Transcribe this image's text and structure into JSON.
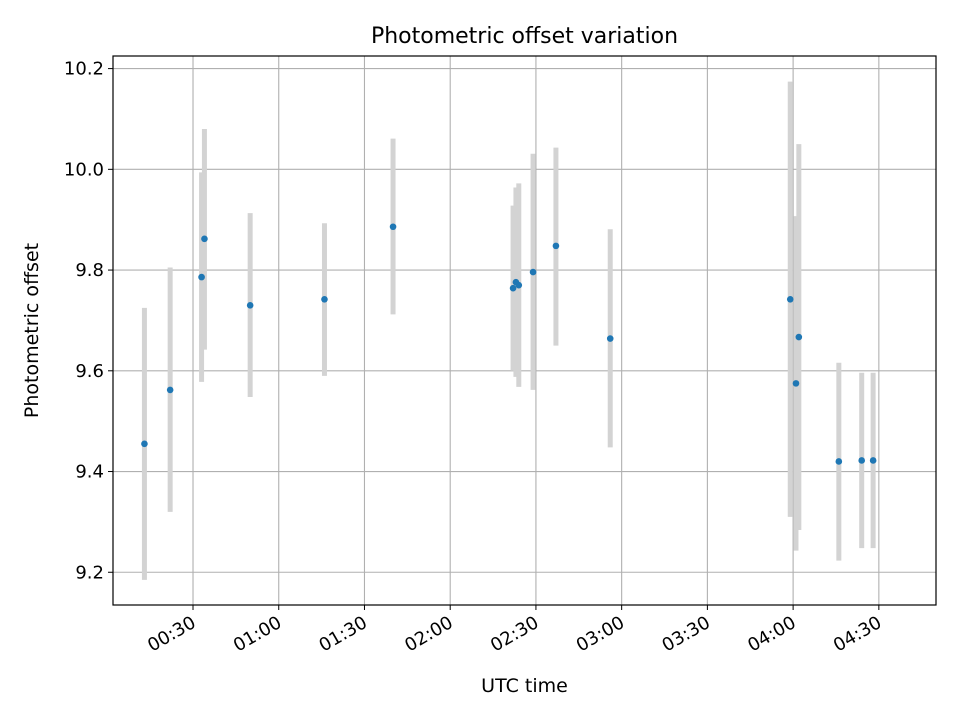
{
  "chart_data": {
    "type": "scatter",
    "title": "Photometric offset variation",
    "xlabel": "UTC time",
    "ylabel": "Photometric offset",
    "x_unit": "HH:MM",
    "xlim": [
      "00:02",
      "04:50"
    ],
    "ylim": [
      9.135,
      10.225
    ],
    "x_ticks": [
      "00:30",
      "01:00",
      "01:30",
      "02:00",
      "02:30",
      "03:00",
      "03:30",
      "04:00",
      "04:30"
    ],
    "y_ticks": [
      "9.2",
      "9.4",
      "9.6",
      "9.8",
      "10.0",
      "10.2"
    ],
    "grid": true,
    "legend": "none",
    "colors": {
      "point": "#1f77b4",
      "errorbar": "#d3d3d3",
      "grid": "#b0b0b0"
    },
    "series": [
      {
        "points": [
          {
            "x": "00:13",
            "y": 9.455,
            "ylow": 9.185,
            "yhigh": 9.725
          },
          {
            "x": "00:22",
            "y": 9.562,
            "ylow": 9.32,
            "yhigh": 9.805
          },
          {
            "x": "00:33",
            "y": 9.786,
            "ylow": 9.578,
            "yhigh": 9.994
          },
          {
            "x": "00:34",
            "y": 9.862,
            "ylow": 9.642,
            "yhigh": 10.08
          },
          {
            "x": "00:50",
            "y": 9.73,
            "ylow": 9.548,
            "yhigh": 9.913
          },
          {
            "x": "01:16",
            "y": 9.742,
            "ylow": 9.59,
            "yhigh": 9.893
          },
          {
            "x": "01:40",
            "y": 9.886,
            "ylow": 9.712,
            "yhigh": 10.061
          },
          {
            "x": "02:22",
            "y": 9.764,
            "ylow": 9.6,
            "yhigh": 9.928
          },
          {
            "x": "02:23",
            "y": 9.776,
            "ylow": 9.588,
            "yhigh": 9.964
          },
          {
            "x": "02:24",
            "y": 9.77,
            "ylow": 9.568,
            "yhigh": 9.972
          },
          {
            "x": "02:29",
            "y": 9.796,
            "ylow": 9.562,
            "yhigh": 10.031
          },
          {
            "x": "02:37",
            "y": 9.848,
            "ylow": 9.65,
            "yhigh": 10.043
          },
          {
            "x": "02:56",
            "y": 9.664,
            "ylow": 9.448,
            "yhigh": 9.881
          },
          {
            "x": "03:59",
            "y": 9.742,
            "ylow": 9.31,
            "yhigh": 10.174
          },
          {
            "x": "04:01",
            "y": 9.575,
            "ylow": 9.243,
            "yhigh": 9.907
          },
          {
            "x": "04:02",
            "y": 9.667,
            "ylow": 9.284,
            "yhigh": 10.05
          },
          {
            "x": "04:16",
            "y": 9.42,
            "ylow": 9.223,
            "yhigh": 9.616
          },
          {
            "x": "04:24",
            "y": 9.422,
            "ylow": 9.248,
            "yhigh": 9.596
          },
          {
            "x": "04:28",
            "y": 9.422,
            "ylow": 9.248,
            "yhigh": 9.596
          }
        ]
      }
    ]
  }
}
